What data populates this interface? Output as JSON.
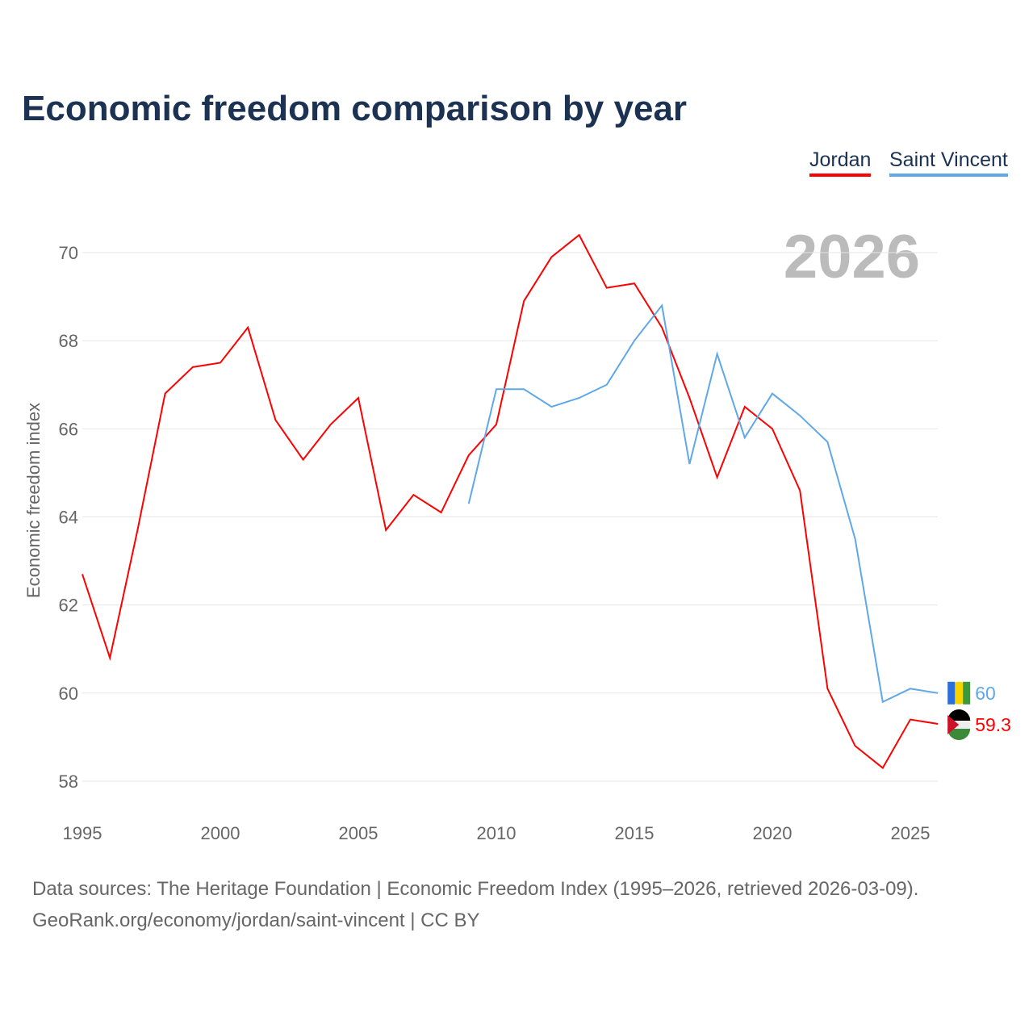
{
  "title": "Economic freedom comparison by year",
  "current_year": "2026",
  "footer": {
    "line1": "Data sources: The Heritage Foundation | Economic Freedom Index (1995–2026, retrieved 2026-03-09).",
    "line2": "GeoRank.org/economy/jordan/saint-vincent | CC BY"
  },
  "chart_data": {
    "type": "line",
    "title": "Economic freedom comparison by year",
    "xlabel": "",
    "ylabel": "Economic freedom index",
    "xlim": [
      1995,
      2026
    ],
    "ylim": [
      57.5,
      71
    ],
    "xticks": [
      "1995",
      "2000",
      "2005",
      "2010",
      "2015",
      "2020",
      "2025"
    ],
    "yticks": [
      "58",
      "60",
      "62",
      "64",
      "66",
      "68",
      "70"
    ],
    "grid": true,
    "legend_position": "top-right",
    "series": [
      {
        "name": "Jordan",
        "color": "#ff0000",
        "end_label": "59.3",
        "x": [
          1995,
          1996,
          1997,
          1998,
          1999,
          2000,
          2001,
          2002,
          2003,
          2004,
          2005,
          2006,
          2007,
          2008,
          2009,
          2010,
          2011,
          2012,
          2013,
          2014,
          2015,
          2016,
          2017,
          2018,
          2019,
          2020,
          2021,
          2022,
          2023,
          2024,
          2025,
          2026
        ],
        "values": [
          62.7,
          60.8,
          63.7,
          66.8,
          67.4,
          67.5,
          68.3,
          66.2,
          65.3,
          66.1,
          66.7,
          63.7,
          64.5,
          64.1,
          65.4,
          66.1,
          68.9,
          69.9,
          70.4,
          69.2,
          69.3,
          68.3,
          66.7,
          64.9,
          66.5,
          66.0,
          64.6,
          60.1,
          58.8,
          58.3,
          59.4,
          59.3
        ]
      },
      {
        "name": "Saint Vincent",
        "color": "#5fa8e8",
        "end_label": "60",
        "x": [
          2009,
          2010,
          2011,
          2012,
          2013,
          2014,
          2015,
          2016,
          2017,
          2018,
          2019,
          2020,
          2021,
          2022,
          2023,
          2024,
          2025,
          2026
        ],
        "values": [
          64.3,
          66.9,
          66.9,
          66.5,
          66.7,
          67.0,
          68.0,
          68.8,
          65.2,
          67.7,
          65.8,
          66.8,
          66.3,
          65.7,
          63.5,
          59.8,
          60.1,
          60.0
        ]
      }
    ]
  }
}
